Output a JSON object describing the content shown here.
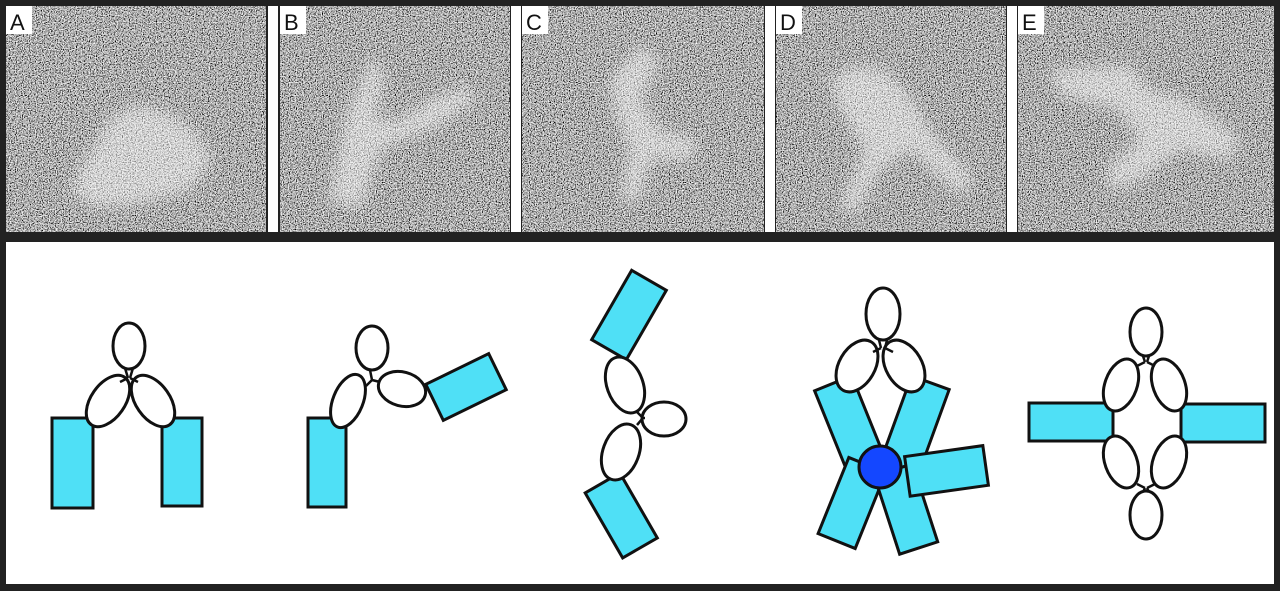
{
  "figure": {
    "panels": [
      {
        "id": "a",
        "label": "A"
      },
      {
        "id": "b",
        "label": "B"
      },
      {
        "id": "c",
        "label": "C"
      },
      {
        "id": "d",
        "label": "D"
      },
      {
        "id": "e",
        "label": "E"
      }
    ],
    "colors": {
      "frame": "#222222",
      "separator": "#ffffff",
      "domain_fill": "#4fe0f6",
      "hub_fill": "#1447ff",
      "outline": "#111111",
      "ellipse_fill": "#ffffff"
    }
  }
}
